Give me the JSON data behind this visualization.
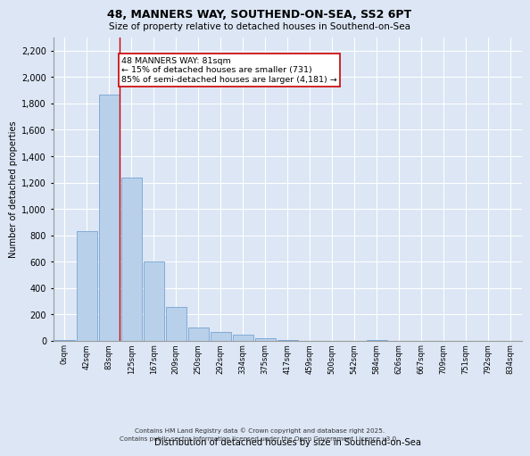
{
  "title_line1": "48, MANNERS WAY, SOUTHEND-ON-SEA, SS2 6PT",
  "title_line2": "Size of property relative to detached houses in Southend-on-Sea",
  "xlabel": "Distribution of detached houses by size in Southend-on-Sea",
  "ylabel": "Number of detached properties",
  "bar_labels": [
    "0sqm",
    "42sqm",
    "83sqm",
    "125sqm",
    "167sqm",
    "209sqm",
    "250sqm",
    "292sqm",
    "334sqm",
    "375sqm",
    "417sqm",
    "459sqm",
    "500sqm",
    "542sqm",
    "584sqm",
    "626sqm",
    "667sqm",
    "709sqm",
    "751sqm",
    "792sqm",
    "834sqm"
  ],
  "bar_values": [
    5,
    830,
    1870,
    1240,
    600,
    260,
    100,
    65,
    50,
    20,
    5,
    0,
    0,
    0,
    5,
    0,
    0,
    0,
    0,
    0,
    0
  ],
  "bar_color": "#b8d0ea",
  "bar_edge_color": "#6699cc",
  "bg_color": "#dce6f5",
  "grid_color": "#ffffff",
  "red_line_x": 2.48,
  "annotation_text": "48 MANNERS WAY: 81sqm\n← 15% of detached houses are smaller (731)\n85% of semi-detached houses are larger (4,181) →",
  "annotation_box_color": "#ffffff",
  "annotation_box_edge": "#cc0000",
  "ylim": [
    0,
    2300
  ],
  "yticks": [
    0,
    200,
    400,
    600,
    800,
    1000,
    1200,
    1400,
    1600,
    1800,
    2000,
    2200
  ],
  "footer_line1": "Contains HM Land Registry data © Crown copyright and database right 2025.",
  "footer_line2": "Contains public sector information licensed under the Open Government Licence v3.0."
}
